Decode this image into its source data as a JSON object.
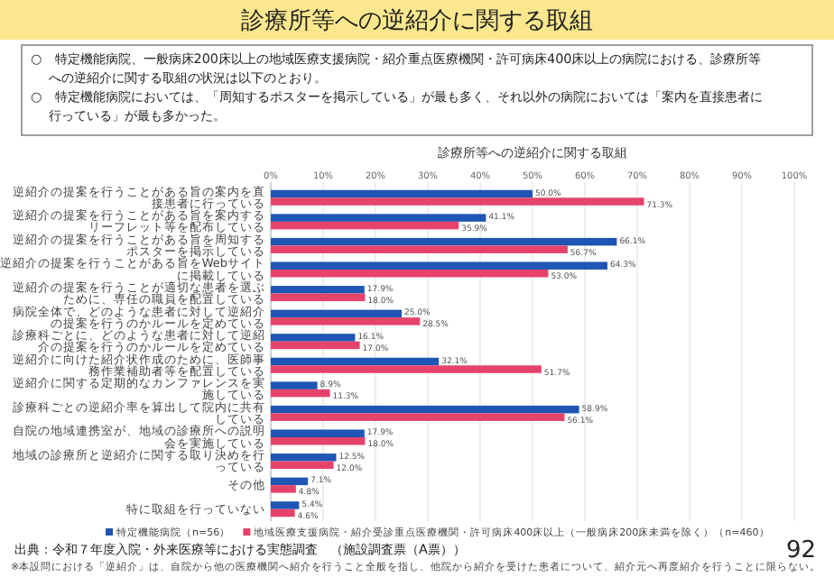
{
  "chart_data": {
    "type": "bar",
    "orientation": "horizontal",
    "title": "診療所等への逆紹介に関する取組",
    "subtitle": "診療所等への逆紹介に関する取組",
    "categories": [
      "逆紹介の提案を行うことがある旨の案内を直接患者に行っている",
      "逆紹介の提案を行うことがある旨を案内するリーフレット等を配布している",
      "逆紹介の提案を行うことがある旨を周知するポスターを掲示している",
      "逆紹介の提案を行うことがある旨をWebサイトに掲載している",
      "逆紹介の提案を行うことが適切な患者を選ぶために、専任の職員を配置している",
      "病院全体で、どのような患者に対して逆紹介の提案を行うのかルールを定めている",
      "診療科ごとに、どのような患者に対して逆紹介の提案を行うのかルールを定めている",
      "逆紹介に向けた紹介状作成のために、医師事務作業補助者等を配置している",
      "逆紹介に関する定期的なカンファレンスを実施している",
      "診療科ごとの逆紹介率を算出して院内に共有している",
      "自院の地域連携室が、地域の診療所への説明会を実施している",
      "地域の診療所と逆紹介に関する取り決めを行っている",
      "その他",
      "特に取組を行っていない"
    ],
    "series": [
      {
        "name": "特定機能病院（n=56）",
        "color": "#1f55b4",
        "values": [
          50.0,
          41.1,
          66.1,
          64.3,
          17.9,
          25.0,
          16.1,
          32.1,
          8.9,
          58.9,
          17.9,
          12.5,
          7.1,
          5.4
        ],
        "value_labels": [
          "50.0%",
          "41.1%",
          "66.1%",
          "64.3%",
          "17.9%",
          "25.0%",
          "16.1%",
          "32.1%",
          "8.9%",
          "58.9%",
          "17.9%",
          "12.5%",
          "7.1%",
          "5.4%"
        ]
      },
      {
        "name": "地域医療支援病院・紹介受診重点医療機関・許可病床400床以上（一般病床200床未満を除く）（n=460）",
        "color": "#e6436b",
        "values": [
          71.3,
          35.9,
          56.7,
          53.0,
          18.0,
          28.5,
          17.0,
          51.7,
          11.3,
          56.1,
          18.0,
          12.0,
          4.8,
          4.6
        ],
        "value_labels": [
          "71.3%",
          "35.9%",
          "56.7%",
          "53.0%",
          "18.0%",
          "28.5%",
          "17.0%",
          "51.7%",
          "11.3%",
          "56.1%",
          "18.0%",
          "12.0%",
          "4.8%",
          "4.6%"
        ]
      }
    ],
    "xlim": [
      0,
      100
    ],
    "xticks": [
      {
        "value": 0,
        "label": "0%"
      },
      {
        "value": 10,
        "label": "10%"
      },
      {
        "value": 20,
        "label": "20%"
      },
      {
        "value": 30,
        "label": "30%"
      },
      {
        "value": 40,
        "label": "40%"
      },
      {
        "value": 50,
        "label": "50%"
      },
      {
        "value": 60,
        "label": "60%"
      },
      {
        "value": 70,
        "label": "70%"
      },
      {
        "value": 80,
        "label": "80%"
      },
      {
        "value": 90,
        "label": "90%"
      },
      {
        "value": 100,
        "label": "100%"
      }
    ],
    "grid": "x",
    "legend": "bottom",
    "annotations": [
      "○　特定機能病院、一般病床200床以上の地域医療支援病院・紹介重点医療機関・許可病床400床以上の病院における、診療所等への逆紹介に関する取組の状況は以下のとおり。",
      "○　特定機能病院においては、「周知するポスターを掲示している」が最も多く、それ以外の病院においては「案内を直接患者に行っている」が最も多かった。",
      "出典：令和７年度入院・外来医療等における実態調査　（施設調査票（A票））",
      "※本設問における「逆紹介」は、自院から他の医療機関へ紹介を行うこと全般を指し、他院から紹介を受けた患者について、紹介元へ再度紹介を行うことに限らない。",
      "92"
    ]
  }
}
